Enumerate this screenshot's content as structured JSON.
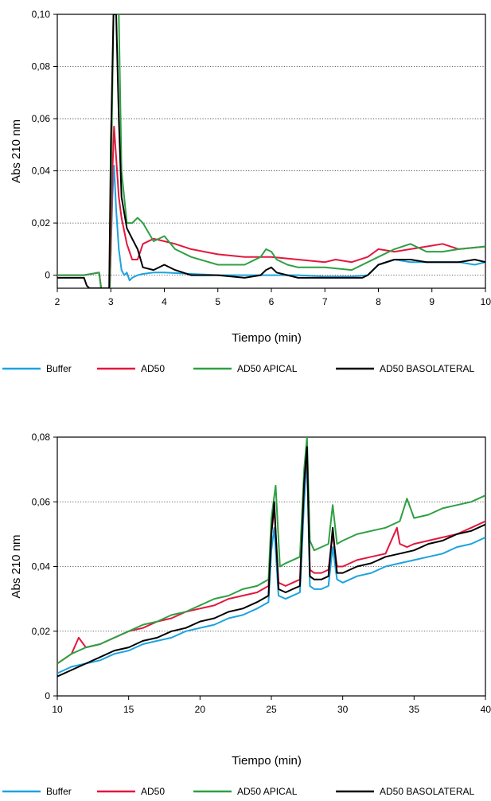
{
  "chart_data": [
    {
      "type": "line",
      "title": "",
      "xlabel": "Tiempo (min)",
      "ylabel": "Abs 210 nm",
      "xlim": [
        2,
        10
      ],
      "ylim": [
        -0.005,
        0.1
      ],
      "xticks": [
        "2",
        "3",
        "4",
        "5",
        "6",
        "7",
        "8",
        "9",
        "10"
      ],
      "yticks": [
        "0",
        "0,02",
        "0,04",
        "0,06",
        "0,08",
        "0,10"
      ],
      "ytick_values": [
        0,
        0.02,
        0.04,
        0.06,
        0.08,
        0.1
      ],
      "grid": "horizontal-dotted",
      "legend_position": "bottom",
      "series": [
        {
          "name": "Buffer",
          "color": "#1ba3e0",
          "x": [
            2.0,
            2.5,
            2.78,
            2.82,
            2.9,
            2.98,
            3.0,
            3.03,
            3.06,
            3.1,
            3.15,
            3.2,
            3.25,
            3.3,
            3.35,
            3.4,
            3.5,
            3.6,
            3.8,
            4.0,
            4.5,
            5.0,
            5.5,
            6.0,
            6.5,
            7.0,
            7.5,
            7.8,
            8.0,
            8.3,
            8.6,
            8.9,
            9.2,
            9.5,
            9.8,
            10.0
          ],
          "y": [
            0.0,
            0.0,
            0.001,
            -0.005,
            -0.005,
            -0.005,
            0.01,
            0.03,
            0.042,
            0.025,
            0.01,
            0.002,
            0.0,
            0.001,
            -0.002,
            -0.001,
            0.0,
            0.0005,
            0.001,
            0.001,
            0.0005,
            0.0,
            0.0,
            0.0,
            0.0,
            -0.0005,
            -0.0005,
            0.0,
            0.004,
            0.006,
            0.005,
            0.005,
            0.005,
            0.005,
            0.004,
            0.005
          ]
        },
        {
          "name": "AD50",
          "color": "#e3173e",
          "x": [
            2.0,
            2.5,
            2.78,
            2.82,
            2.9,
            2.98,
            3.0,
            3.03,
            3.06,
            3.1,
            3.15,
            3.2,
            3.3,
            3.4,
            3.5,
            3.6,
            3.8,
            4.0,
            4.2,
            4.5,
            5.0,
            5.5,
            6.0,
            6.5,
            7.0,
            7.2,
            7.5,
            7.8,
            8.0,
            8.3,
            8.6,
            8.9,
            9.2,
            9.5,
            10.0
          ],
          "y": [
            0.0,
            0.0,
            0.001,
            -0.005,
            -0.005,
            -0.005,
            0.01,
            0.04,
            0.057,
            0.045,
            0.03,
            0.022,
            0.012,
            0.006,
            0.006,
            0.012,
            0.014,
            0.013,
            0.012,
            0.01,
            0.008,
            0.007,
            0.007,
            0.006,
            0.005,
            0.006,
            0.005,
            0.007,
            0.01,
            0.009,
            0.01,
            0.011,
            0.012,
            0.01,
            0.011
          ]
        },
        {
          "name": "AD50 APICAL",
          "color": "#2ea043",
          "x": [
            2.0,
            2.5,
            2.78,
            2.82,
            2.9,
            2.98,
            3.0,
            3.05,
            3.15,
            3.2,
            3.3,
            3.4,
            3.5,
            3.6,
            3.8,
            4.0,
            4.2,
            4.5,
            5.0,
            5.5,
            5.8,
            5.9,
            6.0,
            6.1,
            6.3,
            6.5,
            7.0,
            7.5,
            8.0,
            8.3,
            8.6,
            8.9,
            9.2,
            9.5,
            10.0
          ],
          "y": [
            0.0,
            0.0,
            0.001,
            -0.005,
            -0.005,
            -0.005,
            0.03,
            0.1,
            0.1,
            0.04,
            0.02,
            0.02,
            0.022,
            0.02,
            0.013,
            0.015,
            0.01,
            0.007,
            0.004,
            0.004,
            0.007,
            0.01,
            0.009,
            0.006,
            0.004,
            0.003,
            0.003,
            0.002,
            0.007,
            0.01,
            0.012,
            0.009,
            0.009,
            0.01,
            0.011
          ]
        },
        {
          "name": "AD50 BASOLATERAL",
          "color": "#000000",
          "x": [
            2.0,
            2.5,
            2.55,
            2.6,
            2.9,
            2.97,
            3.0,
            3.05,
            3.1,
            3.15,
            3.2,
            3.3,
            3.4,
            3.5,
            3.6,
            3.8,
            4.0,
            4.2,
            4.5,
            5.0,
            5.5,
            5.8,
            5.9,
            6.0,
            6.1,
            6.3,
            6.5,
            7.0,
            7.5,
            7.7,
            7.8,
            8.0,
            8.3,
            8.6,
            8.9,
            9.2,
            9.5,
            9.8,
            10.0
          ],
          "y": [
            -0.001,
            -0.001,
            -0.004,
            -0.005,
            -0.005,
            -0.005,
            0.05,
            0.1,
            0.1,
            0.06,
            0.03,
            0.018,
            0.014,
            0.01,
            0.003,
            0.002,
            0.004,
            0.002,
            0.0,
            0.0,
            -0.001,
            0.0,
            0.002,
            0.003,
            0.001,
            0.0,
            -0.001,
            -0.001,
            -0.001,
            -0.001,
            0.0,
            0.004,
            0.006,
            0.006,
            0.005,
            0.005,
            0.005,
            0.006,
            0.005
          ]
        }
      ]
    },
    {
      "type": "line",
      "title": "",
      "xlabel": "Tiempo (min)",
      "ylabel": "Abs 210 nm",
      "xlim": [
        10,
        40
      ],
      "ylim": [
        0,
        0.08
      ],
      "xticks": [
        "10",
        "15",
        "20",
        "25",
        "30",
        "35",
        "40"
      ],
      "yticks": [
        "0",
        "0,02",
        "0,04",
        "0,06",
        "0,08"
      ],
      "ytick_values": [
        0,
        0.02,
        0.04,
        0.06,
        0.08
      ],
      "grid": "horizontal-dotted",
      "legend_position": "bottom",
      "series": [
        {
          "name": "Buffer",
          "color": "#1ba3e0",
          "x": [
            10.0,
            11,
            12,
            13,
            14,
            15,
            16,
            17,
            18,
            19,
            20,
            21,
            22,
            23,
            24,
            24.8,
            25.0,
            25.2,
            25.5,
            26,
            26.5,
            27,
            27.3,
            27.5,
            27.7,
            28,
            28.5,
            29,
            29.3,
            29.6,
            30,
            31,
            32,
            33,
            34,
            35,
            36,
            37,
            38,
            39,
            40.0
          ],
          "y": [
            0.007,
            0.009,
            0.01,
            0.011,
            0.013,
            0.014,
            0.016,
            0.017,
            0.018,
            0.02,
            0.021,
            0.022,
            0.024,
            0.025,
            0.027,
            0.029,
            0.045,
            0.052,
            0.031,
            0.03,
            0.031,
            0.032,
            0.06,
            0.073,
            0.034,
            0.033,
            0.033,
            0.034,
            0.046,
            0.036,
            0.035,
            0.037,
            0.038,
            0.04,
            0.041,
            0.042,
            0.043,
            0.044,
            0.046,
            0.047,
            0.049
          ]
        },
        {
          "name": "AD50",
          "color": "#e3173e",
          "x": [
            10.0,
            11,
            11.5,
            12,
            13,
            14,
            15,
            16,
            17,
            18,
            19,
            20,
            21,
            22,
            23,
            24,
            24.8,
            25.0,
            25.2,
            25.5,
            26,
            26.5,
            27,
            27.3,
            27.5,
            27.7,
            28,
            28.5,
            29,
            29.3,
            29.6,
            30,
            31,
            32,
            33,
            33.8,
            34,
            34.5,
            35,
            36,
            37,
            38,
            39,
            40.0
          ],
          "y": [
            0.01,
            0.013,
            0.018,
            0.015,
            0.016,
            0.018,
            0.02,
            0.021,
            0.023,
            0.024,
            0.026,
            0.027,
            0.028,
            0.03,
            0.031,
            0.032,
            0.034,
            0.05,
            0.058,
            0.035,
            0.034,
            0.035,
            0.036,
            0.066,
            0.075,
            0.039,
            0.038,
            0.038,
            0.039,
            0.05,
            0.04,
            0.04,
            0.042,
            0.043,
            0.044,
            0.052,
            0.047,
            0.046,
            0.047,
            0.048,
            0.049,
            0.05,
            0.052,
            0.054
          ]
        },
        {
          "name": "AD50 APICAL",
          "color": "#2ea043",
          "x": [
            10.0,
            11,
            12,
            13,
            14,
            15,
            16,
            17,
            18,
            19,
            20,
            21,
            22,
            23,
            24,
            24.8,
            25.0,
            25.3,
            25.6,
            26,
            26.5,
            27,
            27.3,
            27.5,
            27.7,
            28,
            28.5,
            29,
            29.3,
            29.6,
            30,
            31,
            32,
            33,
            34,
            34.5,
            35,
            36,
            37,
            38,
            39,
            40.0
          ],
          "y": [
            0.01,
            0.013,
            0.015,
            0.016,
            0.018,
            0.02,
            0.022,
            0.023,
            0.025,
            0.026,
            0.028,
            0.03,
            0.031,
            0.033,
            0.034,
            0.036,
            0.055,
            0.065,
            0.04,
            0.041,
            0.042,
            0.043,
            0.07,
            0.08,
            0.048,
            0.045,
            0.046,
            0.047,
            0.059,
            0.047,
            0.048,
            0.05,
            0.051,
            0.052,
            0.054,
            0.061,
            0.055,
            0.056,
            0.058,
            0.059,
            0.06,
            0.062
          ]
        },
        {
          "name": "AD50 BASOLATERAL",
          "color": "#000000",
          "x": [
            10.0,
            11,
            12,
            13,
            14,
            15,
            16,
            17,
            18,
            19,
            20,
            21,
            22,
            23,
            24,
            24.8,
            25.0,
            25.2,
            25.5,
            26,
            26.5,
            27,
            27.3,
            27.5,
            27.7,
            28,
            28.5,
            29,
            29.3,
            29.6,
            30,
            31,
            32,
            33,
            34,
            35,
            36,
            37,
            38,
            39,
            40.0
          ],
          "y": [
            0.006,
            0.008,
            0.01,
            0.012,
            0.014,
            0.015,
            0.017,
            0.018,
            0.02,
            0.021,
            0.023,
            0.024,
            0.026,
            0.027,
            0.029,
            0.031,
            0.05,
            0.06,
            0.033,
            0.032,
            0.033,
            0.034,
            0.066,
            0.077,
            0.037,
            0.036,
            0.036,
            0.037,
            0.052,
            0.038,
            0.038,
            0.04,
            0.041,
            0.043,
            0.044,
            0.045,
            0.047,
            0.048,
            0.05,
            0.051,
            0.053
          ]
        }
      ]
    }
  ],
  "legend": [
    {
      "label": "Buffer",
      "color": "#1ba3e0"
    },
    {
      "label": "AD50",
      "color": "#e3173e"
    },
    {
      "label": "AD50 APICAL",
      "color": "#2ea043"
    },
    {
      "label": "AD50 BASOLATERAL",
      "color": "#000000"
    }
  ]
}
